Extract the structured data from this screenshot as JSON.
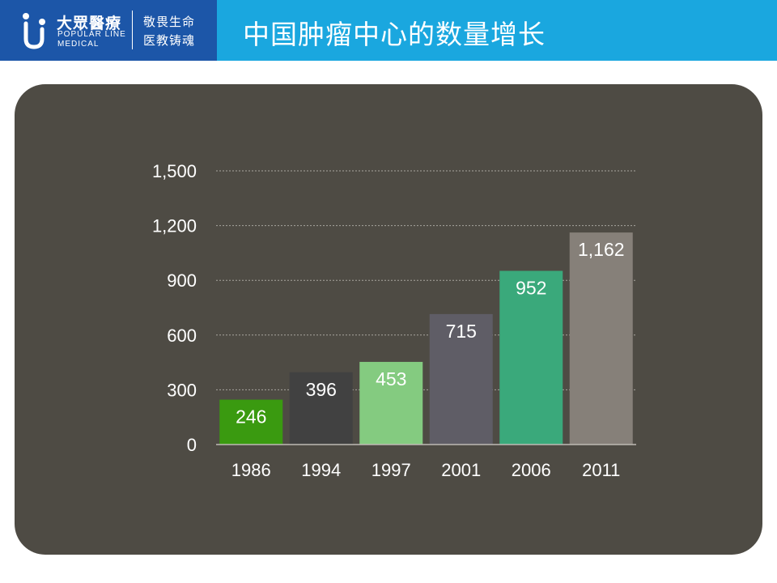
{
  "header": {
    "logo_cn": "大眾醫療",
    "logo_en_line1": "POPULAR LINE",
    "logo_en_line2": "MEDICAL",
    "slogan_line1": "敬畏生命",
    "slogan_line2": "医教铸魂",
    "title": "中国肿瘤中心的数量增长",
    "header_color": "#1aa7df",
    "logo_bg_color": "#1c56a8"
  },
  "panel_color": "#4e4b44",
  "chart_data": {
    "type": "bar",
    "title": "",
    "xlabel": "",
    "ylabel": "",
    "categories": [
      "1986",
      "1994",
      "1997",
      "2001",
      "2006",
      "2011"
    ],
    "values": [
      246,
      396,
      453,
      715,
      952,
      1162
    ],
    "value_labels": [
      "246",
      "396",
      "453",
      "715",
      "952",
      "1,162"
    ],
    "bar_colors": [
      "#3a9a10",
      "#414141",
      "#84cb80",
      "#5f5d66",
      "#3aa97b",
      "#868079"
    ],
    "ylim": [
      0,
      1500
    ],
    "yticks": [
      0,
      300,
      600,
      900,
      1200,
      1500
    ],
    "ytick_labels": [
      "0",
      "300",
      "600",
      "900",
      "1,200",
      "1,500"
    ],
    "grid": true,
    "legend": "none"
  }
}
